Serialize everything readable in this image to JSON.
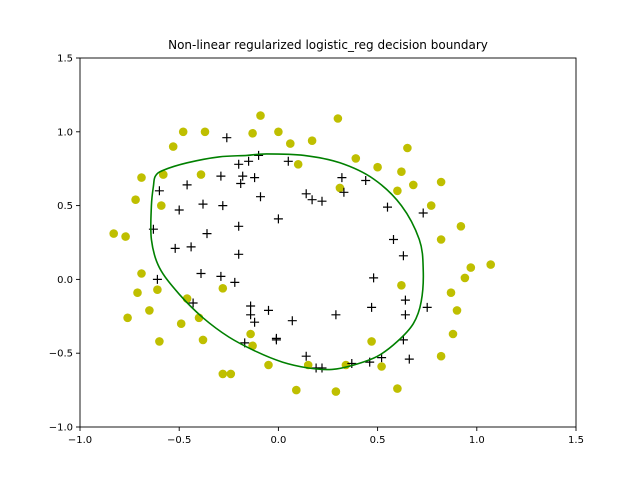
{
  "chart_data": {
    "type": "scatter",
    "title": "Non-linear regularized logistic_reg decision boundary",
    "xlabel": "",
    "ylabel": "",
    "xlim": [
      -1.0,
      1.5
    ],
    "ylim": [
      -1.0,
      1.5
    ],
    "xticks": [
      -1.0,
      -0.5,
      0.0,
      0.5,
      1.0,
      1.5
    ],
    "xtick_labels": [
      "−1.0",
      "−0.5",
      "0.0",
      "0.5",
      "1.0",
      "1.5"
    ],
    "yticks": [
      -1.0,
      -0.5,
      0.0,
      0.5,
      1.0,
      1.5
    ],
    "ytick_labels": [
      "−1.0",
      "−0.5",
      "0.0",
      "0.5",
      "1.0",
      "1.5"
    ],
    "grid": false,
    "series": [
      {
        "marker": "circle",
        "color": "#bfbf00",
        "x": [
          -0.09,
          0.0,
          0.3,
          -0.37,
          -0.48,
          0.06,
          -0.13,
          0.17,
          -0.69,
          -0.53,
          0.39,
          -0.58,
          0.5,
          0.62,
          0.65,
          0.31,
          0.6,
          0.68,
          0.77,
          0.82,
          -0.72,
          -0.39,
          0.1,
          0.92,
          -0.59,
          0.82,
          -0.77,
          -0.83,
          0.97,
          1.07,
          0.94,
          -0.69,
          0.87,
          0.62,
          -0.71,
          -0.61,
          -0.46,
          -0.76,
          0.9,
          -0.65,
          -0.49,
          -0.4,
          -0.28,
          -0.38,
          -0.6,
          -0.14,
          -0.28,
          0.47,
          0.88,
          0.82,
          -0.13,
          -0.05,
          0.15,
          0.34,
          0.52,
          0.6,
          -0.24,
          0.09,
          0.29
        ],
        "y": [
          1.11,
          1.0,
          1.09,
          1.0,
          1.0,
          0.92,
          0.99,
          0.94,
          0.69,
          0.9,
          0.82,
          0.71,
          0.76,
          0.73,
          0.89,
          0.62,
          0.6,
          0.64,
          0.5,
          0.66,
          0.54,
          0.71,
          0.78,
          0.36,
          0.5,
          0.27,
          0.29,
          0.31,
          0.08,
          0.1,
          0.01,
          0.04,
          -0.09,
          -0.04,
          -0.09,
          -0.07,
          -0.13,
          -0.26,
          -0.21,
          -0.21,
          -0.3,
          -0.26,
          -0.06,
          -0.41,
          -0.42,
          -0.37,
          -0.64,
          -0.42,
          -0.37,
          -0.52,
          -0.45,
          -0.58,
          -0.58,
          -0.58,
          -0.59,
          -0.74,
          -0.64,
          -0.75,
          -0.76
        ]
      },
      {
        "marker": "plus",
        "color": "#000000",
        "x": [
          -0.26,
          0.05,
          -0.1,
          -0.15,
          -0.2,
          -0.18,
          -0.29,
          -0.46,
          -0.6,
          -0.19,
          -0.12,
          -0.09,
          -0.28,
          -0.38,
          -0.5,
          -0.63,
          -0.36,
          -0.2,
          0.0,
          0.14,
          0.22,
          0.17,
          0.32,
          0.33,
          0.44,
          0.55,
          0.58,
          0.63,
          0.73,
          -0.52,
          -0.44,
          -0.2,
          -0.39,
          -0.61,
          -0.29,
          -0.22,
          -0.14,
          -0.05,
          0.07,
          -0.43,
          -0.14,
          -0.12,
          -0.01,
          0.29,
          0.47,
          0.48,
          0.64,
          0.64,
          0.75,
          0.63,
          -0.17,
          -0.01,
          0.14,
          0.22,
          0.52,
          0.66,
          0.46,
          0.37,
          0.19
        ],
        "y": [
          0.96,
          0.8,
          0.84,
          0.8,
          0.78,
          0.7,
          0.7,
          0.64,
          0.6,
          0.65,
          0.69,
          0.56,
          0.5,
          0.51,
          0.47,
          0.34,
          0.31,
          0.36,
          0.41,
          0.58,
          0.53,
          0.54,
          0.69,
          0.59,
          0.67,
          0.49,
          0.27,
          0.16,
          0.45,
          0.21,
          0.22,
          0.17,
          0.04,
          0.0,
          0.02,
          -0.02,
          -0.18,
          -0.21,
          -0.28,
          -0.16,
          -0.24,
          -0.29,
          -0.4,
          -0.24,
          -0.19,
          0.01,
          -0.14,
          -0.24,
          -0.19,
          -0.41,
          -0.43,
          -0.41,
          -0.52,
          -0.6,
          -0.53,
          -0.54,
          -0.56,
          -0.57,
          -0.6
        ]
      }
    ],
    "boundary": {
      "color": "#008000",
      "x": [
        -0.06,
        0.13,
        0.31,
        0.48,
        0.62,
        0.71,
        0.73,
        0.72,
        0.68,
        0.6,
        0.5,
        0.38,
        0.27,
        0.15,
        0.02,
        -0.11,
        -0.25,
        -0.38,
        -0.5,
        -0.6,
        -0.64,
        -0.64,
        -0.63,
        -0.62,
        -0.58,
        -0.46,
        -0.3,
        -0.16,
        -0.06
      ],
      "y": [
        0.85,
        0.84,
        0.79,
        0.68,
        0.5,
        0.27,
        0.07,
        -0.15,
        -0.3,
        -0.42,
        -0.52,
        -0.58,
        -0.61,
        -0.6,
        -0.56,
        -0.49,
        -0.39,
        -0.26,
        -0.1,
        0.08,
        0.27,
        0.5,
        0.63,
        0.7,
        0.74,
        0.79,
        0.83,
        0.84,
        0.85
      ]
    }
  }
}
